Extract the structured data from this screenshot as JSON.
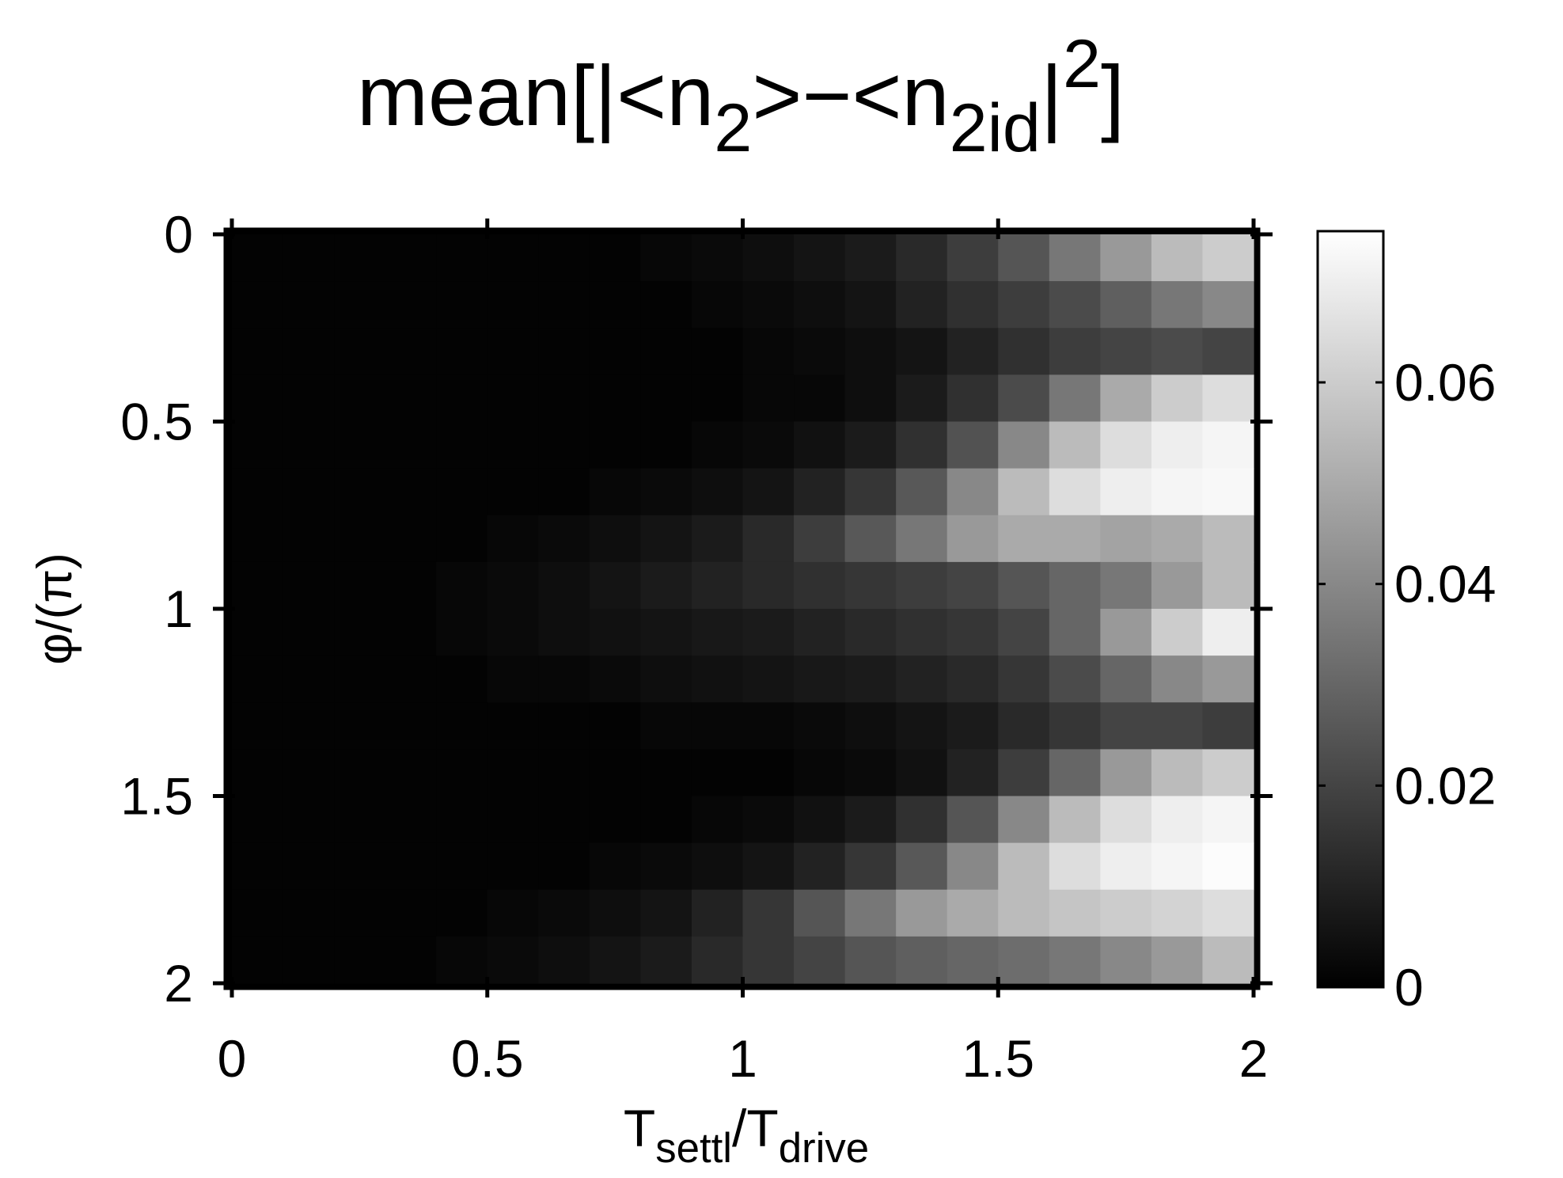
{
  "chart_data": {
    "type": "heatmap",
    "title": [
      {
        "text": "mean[|<n",
        "shift": "base"
      },
      {
        "text": "2",
        "shift": "sub"
      },
      {
        "text": ">−<n",
        "shift": "base"
      },
      {
        "text": "2",
        "shift": "sub"
      },
      {
        "text": "id",
        "shift": "sub"
      },
      {
        "text": "|",
        "shift": "base"
      },
      {
        "text": "2",
        "shift": "sup"
      },
      {
        "text": "]",
        "shift": "base"
      }
    ],
    "xlabel": [
      {
        "text": "T",
        "shift": "base"
      },
      {
        "text": "settl",
        "shift": "sub"
      },
      {
        "text": "/T",
        "shift": "base"
      },
      {
        "text": "drive",
        "shift": "sub"
      }
    ],
    "ylabel": "φ/(π)",
    "x": [
      0.05,
      0.15,
      0.25,
      0.35,
      0.45,
      0.55,
      0.65,
      0.75,
      0.85,
      0.95,
      1.05,
      1.15,
      1.25,
      1.35,
      1.45,
      1.55,
      1.65,
      1.75,
      1.85,
      1.95
    ],
    "y": [
      0.0625,
      0.1875,
      0.3125,
      0.4375,
      0.5625,
      0.6875,
      0.8125,
      0.9375,
      1.0625,
      1.1875,
      1.3125,
      1.4375,
      1.5625,
      1.6875,
      1.8125,
      1.9375
    ],
    "z": [
      [
        0.001,
        0.001,
        0.001,
        0.001,
        0.001,
        0.001,
        0.001,
        0.001,
        0.002,
        0.003,
        0.004,
        0.006,
        0.008,
        0.012,
        0.018,
        0.025,
        0.035,
        0.045,
        0.055,
        0.06
      ],
      [
        0.001,
        0.001,
        0.001,
        0.001,
        0.001,
        0.001,
        0.001,
        0.001,
        0.001,
        0.002,
        0.003,
        0.004,
        0.006,
        0.01,
        0.014,
        0.018,
        0.022,
        0.028,
        0.035,
        0.04
      ],
      [
        0.001,
        0.001,
        0.001,
        0.001,
        0.001,
        0.001,
        0.001,
        0.001,
        0.001,
        0.001,
        0.002,
        0.003,
        0.004,
        0.006,
        0.01,
        0.014,
        0.018,
        0.02,
        0.022,
        0.02
      ],
      [
        0.001,
        0.001,
        0.001,
        0.001,
        0.001,
        0.001,
        0.001,
        0.001,
        0.001,
        0.001,
        0.002,
        0.002,
        0.004,
        0.008,
        0.014,
        0.022,
        0.035,
        0.05,
        0.06,
        0.065
      ],
      [
        0.001,
        0.001,
        0.001,
        0.001,
        0.001,
        0.001,
        0.001,
        0.001,
        0.001,
        0.002,
        0.003,
        0.005,
        0.008,
        0.014,
        0.024,
        0.04,
        0.055,
        0.065,
        0.07,
        0.072
      ],
      [
        0.001,
        0.001,
        0.001,
        0.001,
        0.001,
        0.001,
        0.001,
        0.002,
        0.003,
        0.004,
        0.006,
        0.01,
        0.016,
        0.026,
        0.04,
        0.055,
        0.065,
        0.07,
        0.072,
        0.073
      ],
      [
        0.001,
        0.001,
        0.001,
        0.001,
        0.001,
        0.002,
        0.003,
        0.004,
        0.006,
        0.008,
        0.012,
        0.018,
        0.026,
        0.035,
        0.045,
        0.05,
        0.05,
        0.048,
        0.05,
        0.055
      ],
      [
        0.001,
        0.001,
        0.001,
        0.001,
        0.002,
        0.003,
        0.004,
        0.006,
        0.008,
        0.01,
        0.012,
        0.014,
        0.016,
        0.018,
        0.02,
        0.025,
        0.03,
        0.035,
        0.045,
        0.055
      ],
      [
        0.001,
        0.001,
        0.001,
        0.001,
        0.002,
        0.003,
        0.004,
        0.005,
        0.006,
        0.007,
        0.008,
        0.01,
        0.012,
        0.014,
        0.016,
        0.02,
        0.03,
        0.045,
        0.06,
        0.07
      ],
      [
        0.001,
        0.001,
        0.001,
        0.001,
        0.001,
        0.002,
        0.002,
        0.003,
        0.004,
        0.005,
        0.006,
        0.007,
        0.008,
        0.01,
        0.012,
        0.016,
        0.022,
        0.03,
        0.04,
        0.045
      ],
      [
        0.001,
        0.001,
        0.001,
        0.001,
        0.001,
        0.001,
        0.001,
        0.001,
        0.002,
        0.002,
        0.002,
        0.003,
        0.004,
        0.006,
        0.008,
        0.012,
        0.016,
        0.02,
        0.02,
        0.018
      ],
      [
        0.001,
        0.001,
        0.001,
        0.001,
        0.001,
        0.001,
        0.001,
        0.001,
        0.001,
        0.001,
        0.001,
        0.002,
        0.003,
        0.005,
        0.01,
        0.018,
        0.03,
        0.045,
        0.055,
        0.06
      ],
      [
        0.001,
        0.001,
        0.001,
        0.001,
        0.001,
        0.001,
        0.001,
        0.001,
        0.001,
        0.002,
        0.003,
        0.005,
        0.008,
        0.014,
        0.025,
        0.04,
        0.055,
        0.065,
        0.07,
        0.072
      ],
      [
        0.001,
        0.001,
        0.001,
        0.001,
        0.001,
        0.001,
        0.001,
        0.002,
        0.003,
        0.004,
        0.006,
        0.01,
        0.016,
        0.026,
        0.04,
        0.055,
        0.065,
        0.07,
        0.072,
        0.074
      ],
      [
        0.001,
        0.001,
        0.001,
        0.001,
        0.001,
        0.002,
        0.003,
        0.004,
        0.006,
        0.01,
        0.016,
        0.025,
        0.035,
        0.045,
        0.05,
        0.055,
        0.058,
        0.06,
        0.062,
        0.065
      ],
      [
        0.001,
        0.001,
        0.001,
        0.001,
        0.002,
        0.003,
        0.004,
        0.006,
        0.008,
        0.012,
        0.016,
        0.02,
        0.025,
        0.028,
        0.03,
        0.032,
        0.035,
        0.04,
        0.045,
        0.055
      ]
    ],
    "xlim": [
      0,
      2
    ],
    "ylim": [
      2,
      0
    ],
    "xticks": [
      0,
      0.5,
      1,
      1.5,
      2
    ],
    "yticks": [
      0,
      0.5,
      1,
      1.5,
      2
    ],
    "colormap": "gray",
    "clim": [
      0,
      0.075
    ],
    "cticks": [
      0,
      0.02,
      0.04,
      0.06
    ]
  }
}
